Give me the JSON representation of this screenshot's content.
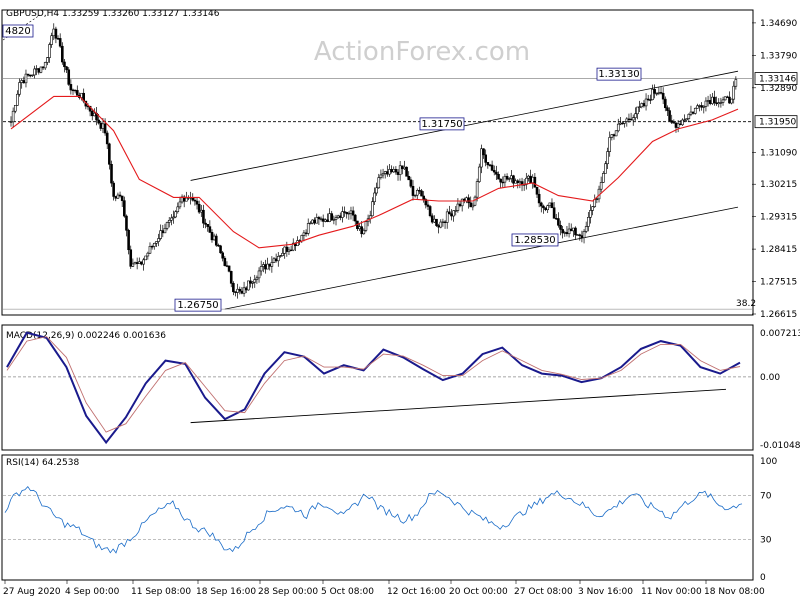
{
  "watermark": "ActionForex.com",
  "price_panel": {
    "header": "GBPUSD,H4  1.33259 1.33260 1.33127 1.33146",
    "current_price": "1.33146",
    "level_195": "1.31950",
    "fib_label": "38.2",
    "y_ticks": [
      "1.34690",
      "1.33790",
      "1.32890",
      "1.31090",
      "1.30215",
      "1.29315",
      "1.28415",
      "1.27515",
      "1.26615"
    ],
    "annotations": [
      {
        "text": "1.34820",
        "display": "4820"
      },
      {
        "text": "1.26750"
      },
      {
        "text": "1.31750"
      },
      {
        "text": "1.28530"
      },
      {
        "text": "1.33130"
      }
    ]
  },
  "macd_panel": {
    "header": "MACD(12,26,9) 0.002246 0.001636",
    "y_ticks": [
      "0.007213",
      "0.00",
      "-0.01048"
    ]
  },
  "rsi_panel": {
    "header": "RSI(14) 64.2538",
    "y_ticks": [
      "100",
      "70",
      "30",
      "0"
    ]
  },
  "x_ticks": [
    "27 Aug 2020",
    "4 Sep 00:00",
    "11 Sep 08:00",
    "18 Sep 16:00",
    "28 Sep 00:00",
    "5 Oct 08:00",
    "12 Oct 16:00",
    "20 Oct 00:00",
    "27 Oct 08:00",
    "3 Nov 16:00",
    "11 Nov 00:00",
    "18 Nov 08:00"
  ],
  "colors": {
    "candles": "#000000",
    "moving_average": "#e41a1c",
    "macd": "#1a1a8c",
    "signal": "#c07070",
    "rsi": "#1a6cc8",
    "box_border": "#1a1a8c"
  },
  "chart_data": [
    {
      "type": "candlestick",
      "title": "GBPUSD,H4",
      "ylim": [
        1.26615,
        1.3502
      ],
      "xlim": [
        "2020-08-27",
        "2020-11-20"
      ],
      "trend_lines": [
        {
          "name": "upper channel",
          "points": [
            [
              "2020-09-17",
              1.3032
            ],
            [
              "2020-11-20",
              1.3335
            ]
          ]
        },
        {
          "name": "lower channel",
          "points": [
            [
              "2020-09-21",
              1.2675
            ],
            [
              "2020-11-20",
              1.2958
            ]
          ]
        },
        {
          "name": "horizontal 1.31950",
          "y": 1.3195
        },
        {
          "name": "horizontal 1.33146",
          "y": 1.33146
        },
        {
          "name": "38.2 level",
          "y": 1.2675
        }
      ],
      "labelled_points": [
        {
          "date": "2020-09-01",
          "value": 1.3482
        },
        {
          "date": "2020-09-23",
          "value": 1.2675
        },
        {
          "date": "2020-10-21",
          "value": 1.3175
        },
        {
          "date": "2020-11-02",
          "value": 1.2853
        },
        {
          "date": "2020-11-11",
          "value": 1.3313
        }
      ],
      "close_path": [
        [
          "2020-08-27",
          1.3195
        ],
        [
          "2020-08-28",
          1.3305
        ],
        [
          "2020-08-31",
          1.3355
        ],
        [
          "2020-09-01",
          1.346
        ],
        [
          "2020-09-02",
          1.337
        ],
        [
          "2020-09-03",
          1.3285
        ],
        [
          "2020-09-04",
          1.327
        ],
        [
          "2020-09-07",
          1.317
        ],
        [
          "2020-09-08",
          1.2985
        ],
        [
          "2020-09-09",
          1.2985
        ],
        [
          "2020-09-10",
          1.2805
        ],
        [
          "2020-09-11",
          1.2795
        ],
        [
          "2020-09-14",
          1.2905
        ],
        [
          "2020-09-15",
          1.292
        ],
        [
          "2020-09-16",
          1.2985
        ],
        [
          "2020-09-17",
          1.299
        ],
        [
          "2020-09-18",
          1.295
        ],
        [
          "2020-09-21",
          1.2805
        ],
        [
          "2020-09-22",
          1.2735
        ],
        [
          "2020-09-23",
          1.2715
        ],
        [
          "2020-09-24",
          1.2755
        ],
        [
          "2020-09-25",
          1.278
        ],
        [
          "2020-09-28",
          1.284
        ],
        [
          "2020-09-29",
          1.2855
        ],
        [
          "2020-09-30",
          1.288
        ],
        [
          "2020-10-01",
          1.2915
        ],
        [
          "2020-10-02",
          1.292
        ],
        [
          "2020-10-05",
          1.2945
        ],
        [
          "2020-10-06",
          1.2935
        ],
        [
          "2020-10-07",
          1.288
        ],
        [
          "2020-10-08",
          1.2935
        ],
        [
          "2020-10-09",
          1.304
        ],
        [
          "2020-10-12",
          1.3065
        ],
        [
          "2020-10-13",
          1.299
        ],
        [
          "2020-10-14",
          1.3
        ],
        [
          "2020-10-15",
          1.293
        ],
        [
          "2020-10-16",
          1.291
        ],
        [
          "2020-10-19",
          1.298
        ],
        [
          "2020-10-20",
          1.2955
        ],
        [
          "2020-10-21",
          1.311
        ],
        [
          "2020-10-22",
          1.3075
        ],
        [
          "2020-10-23",
          1.304
        ],
        [
          "2020-10-26",
          1.303
        ],
        [
          "2020-10-27",
          1.304
        ],
        [
          "2020-10-28",
          1.2955
        ],
        [
          "2020-10-29",
          1.296
        ],
        [
          "2020-10-30",
          1.29
        ],
        [
          "2020-11-02",
          1.288
        ],
        [
          "2020-11-03",
          1.2965
        ],
        [
          "2020-11-04",
          1.3015
        ],
        [
          "2020-11-05",
          1.315
        ],
        [
          "2020-11-06",
          1.318
        ],
        [
          "2020-11-09",
          1.324
        ],
        [
          "2020-11-10",
          1.3275
        ],
        [
          "2020-11-11",
          1.3285
        ],
        [
          "2020-11-12",
          1.319
        ],
        [
          "2020-11-13",
          1.319
        ],
        [
          "2020-11-16",
          1.325
        ],
        [
          "2020-11-17",
          1.326
        ],
        [
          "2020-11-18",
          1.325
        ],
        [
          "2020-11-19",
          1.3255
        ],
        [
          "2020-11-20",
          1.33146
        ]
      ],
      "moving_average_path": [
        [
          "2020-08-27",
          1.3175
        ],
        [
          "2020-09-01",
          1.3265
        ],
        [
          "2020-09-04",
          1.3265
        ],
        [
          "2020-09-08",
          1.317
        ],
        [
          "2020-09-11",
          1.3035
        ],
        [
          "2020-09-15",
          1.2985
        ],
        [
          "2020-09-18",
          1.2985
        ],
        [
          "2020-09-22",
          1.289
        ],
        [
          "2020-09-25",
          1.2845
        ],
        [
          "2020-09-29",
          1.2855
        ],
        [
          "2020-10-02",
          1.288
        ],
        [
          "2020-10-06",
          1.2905
        ],
        [
          "2020-10-09",
          1.2935
        ],
        [
          "2020-10-13",
          1.298
        ],
        [
          "2020-10-16",
          1.2975
        ],
        [
          "2020-10-20",
          1.2975
        ],
        [
          "2020-10-23",
          1.301
        ],
        [
          "2020-10-27",
          1.3025
        ],
        [
          "2020-10-30",
          1.299
        ],
        [
          "2020-11-03",
          1.2975
        ],
        [
          "2020-11-06",
          1.304
        ],
        [
          "2020-11-10",
          1.314
        ],
        [
          "2020-11-13",
          1.3175
        ],
        [
          "2020-11-17",
          1.32
        ],
        [
          "2020-11-20",
          1.323
        ]
      ]
    },
    {
      "type": "line",
      "title": "MACD(12,26,9)",
      "ylim": [
        -0.01048,
        0.007213
      ],
      "series": [
        {
          "name": "MACD",
          "values": [
            0.0015,
            0.0068,
            0.006,
            0.0015,
            -0.006,
            -0.0101,
            -0.0062,
            -0.001,
            0.0025,
            0.002,
            -0.0032,
            -0.0065,
            -0.005,
            0.0005,
            0.0038,
            0.0031,
            0.0005,
            0.0018,
            0.001,
            0.0042,
            0.003,
            0.0012,
            -0.0005,
            0.0005,
            0.0035,
            0.0045,
            0.0018,
            0.0005,
            0.0002,
            -0.0008,
            -0.0002,
            0.0015,
            0.0043,
            0.0055,
            0.0048,
            0.0015,
            0.0005,
            0.0022
          ]
        },
        {
          "name": "Signal",
          "values": [
            0.001,
            0.0055,
            0.0062,
            0.003,
            -0.004,
            -0.0085,
            -0.0072,
            -0.003,
            0.001,
            0.0022,
            -0.0015,
            -0.0052,
            -0.0055,
            -0.001,
            0.0025,
            0.0032,
            0.0015,
            0.0015,
            0.0012,
            0.0035,
            0.0032,
            0.0018,
            0.0002,
            0.0002,
            0.0025,
            0.004,
            0.0025,
            0.001,
            0.0004,
            -0.0004,
            -0.0002,
            0.001,
            0.0035,
            0.005,
            0.005,
            0.0025,
            0.001,
            0.0016
          ]
        }
      ],
      "trend_line": [
        [
          "2020-09-17",
          -0.0055
        ],
        [
          "2020-11-20",
          -0.0016
        ]
      ]
    },
    {
      "type": "line",
      "title": "RSI(14)",
      "ylim": [
        0,
        100
      ],
      "reference_levels": [
        70,
        30
      ],
      "series": [
        {
          "name": "RSI",
          "values": [
            57,
            72,
            78,
            64,
            52,
            44,
            40,
            30,
            22,
            20,
            28,
            38,
            50,
            58,
            62,
            48,
            40,
            36,
            24,
            20,
            34,
            46,
            56,
            60,
            58,
            52,
            64,
            60,
            50,
            62,
            72,
            58,
            54,
            48,
            52,
            68,
            74,
            66,
            58,
            52,
            46,
            42,
            48,
            56,
            62,
            70,
            72,
            66,
            60,
            52,
            56,
            64,
            72,
            62,
            58,
            50,
            60,
            68,
            72,
            62,
            58,
            64
          ]
        }
      ]
    }
  ]
}
